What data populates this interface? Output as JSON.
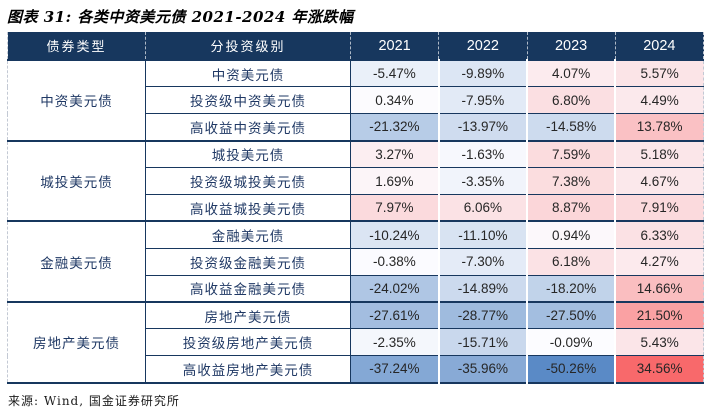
{
  "title": "图表 31: 各类中资美元债 2021-2024 年涨跌幅",
  "source": "来源: Wind, 国金证券研究所",
  "colors": {
    "header_bg": "#17375E",
    "header_text": "#FFFFFF",
    "grid_line": "#17375E",
    "label_text": "#1F3864",
    "value_text": "#262626",
    "scale": {
      "min_color": "#5A8AC6",
      "mid_color": "#FCFCFF",
      "max_color": "#F8696B",
      "domain_min": -50.26,
      "domain_mid": 0,
      "domain_max": 34.56
    }
  },
  "chart_data": {
    "type": "table",
    "title": "图表 31: 各类中资美元债 2021-2024 年涨跌幅",
    "unit": "%",
    "value_format": "percent_2dp",
    "heatmap": "blue-negative white-zero red-positive",
    "columns": [
      "债券类型",
      "分投资级别",
      "2021",
      "2022",
      "2023",
      "2024"
    ],
    "groups": [
      {
        "type": "中资美元债",
        "rows": [
          {
            "label": "中资美元债",
            "values": [
              -5.47,
              -9.89,
              4.07,
              5.57
            ]
          },
          {
            "label": "投资级中资美元债",
            "values": [
              0.34,
              -7.95,
              6.8,
              4.49
            ]
          },
          {
            "label": "高收益中资美元债",
            "values": [
              -21.32,
              -13.97,
              -14.58,
              13.78
            ]
          }
        ]
      },
      {
        "type": "城投美元债",
        "rows": [
          {
            "label": "城投美元债",
            "values": [
              3.27,
              -1.63,
              7.59,
              5.18
            ]
          },
          {
            "label": "投资级城投美元债",
            "values": [
              1.69,
              -3.35,
              7.38,
              4.67
            ]
          },
          {
            "label": "高收益城投美元债",
            "values": [
              7.97,
              6.06,
              8.87,
              7.91
            ]
          }
        ]
      },
      {
        "type": "金融美元债",
        "rows": [
          {
            "label": "金融美元债",
            "values": [
              -10.24,
              -11.1,
              0.94,
              6.33
            ]
          },
          {
            "label": "投资级金融美元债",
            "values": [
              -0.38,
              -7.3,
              6.18,
              4.27
            ]
          },
          {
            "label": "高收益金融美元债",
            "values": [
              -24.02,
              -14.89,
              -18.2,
              14.66
            ]
          }
        ]
      },
      {
        "type": "房地产美元债",
        "rows": [
          {
            "label": "房地产美元债",
            "values": [
              -27.61,
              -28.77,
              -27.5,
              21.5
            ]
          },
          {
            "label": "投资级房地产美元债",
            "values": [
              -2.35,
              -15.71,
              -0.09,
              5.43
            ]
          },
          {
            "label": "高收益房地产美元债",
            "values": [
              -37.24,
              -35.96,
              -50.26,
              34.56
            ]
          }
        ]
      }
    ],
    "source": "来源: Wind, 国金证券研究所"
  }
}
